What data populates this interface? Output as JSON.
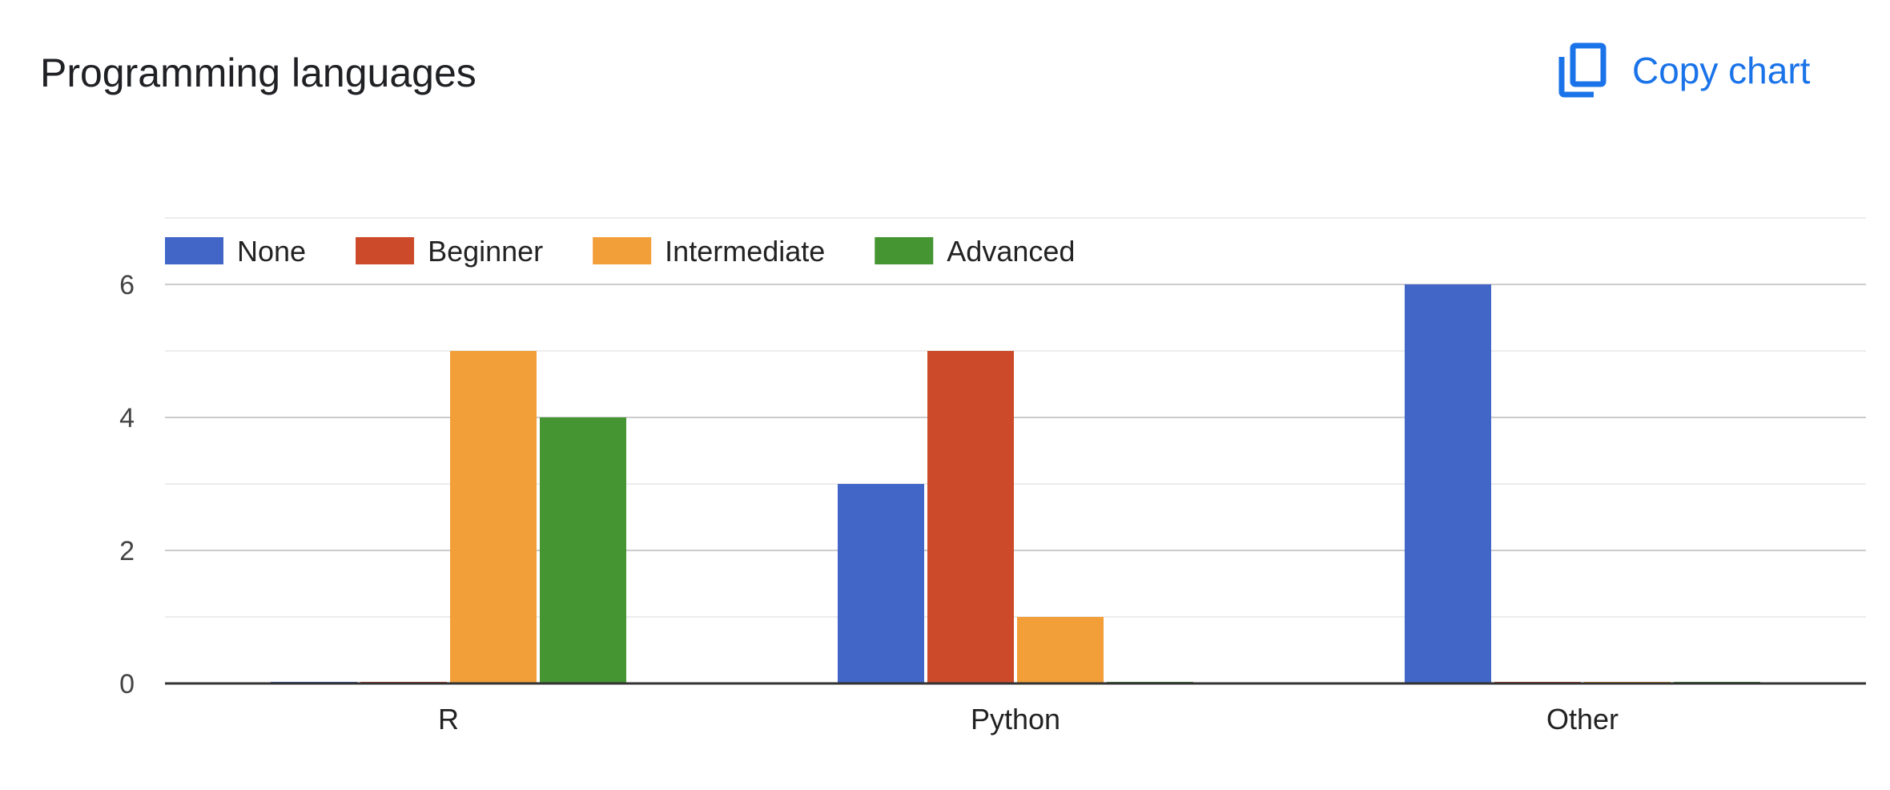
{
  "title": "Programming languages",
  "copy_button": {
    "label": "Copy chart",
    "icon": "copy-icon"
  },
  "colors": {
    "accent": "#1a73e8"
  },
  "chart_data": {
    "type": "bar",
    "title": "",
    "xlabel": "",
    "ylabel": "",
    "categories": [
      "R",
      "Python",
      "Other"
    ],
    "series": [
      {
        "name": "None",
        "color": "#4166c8",
        "values": [
          0,
          3,
          6
        ]
      },
      {
        "name": "Beginner",
        "color": "#cc4a29",
        "values": [
          0,
          5,
          0
        ]
      },
      {
        "name": "Intermediate",
        "color": "#f29f3a",
        "values": [
          5,
          1,
          0
        ]
      },
      {
        "name": "Advanced",
        "color": "#459633",
        "values": [
          4,
          0,
          0
        ]
      }
    ],
    "ylim": [
      0,
      7
    ],
    "yticks": [
      0,
      2,
      4,
      6
    ],
    "grid": true,
    "legend": "top-left"
  }
}
